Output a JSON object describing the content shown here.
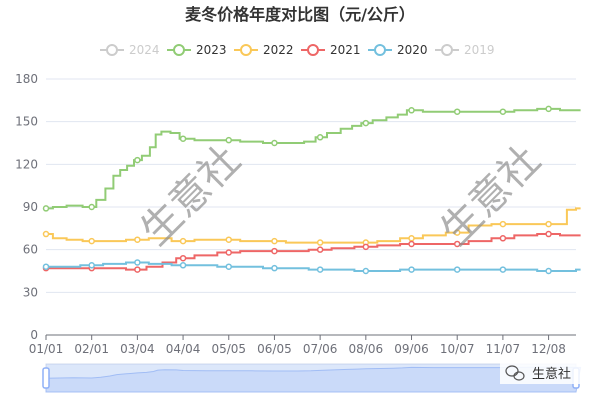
{
  "chart_data": {
    "type": "line",
    "title": "麦冬价格年度对比图（元/公斤）",
    "x": [
      "01/01",
      "02/01",
      "03/04",
      "04/04",
      "05/05",
      "06/05",
      "07/06",
      "08/06",
      "09/06",
      "10/07",
      "11/07",
      "12/08"
    ],
    "ylim": [
      0,
      180
    ],
    "yticks": [
      0,
      30,
      60,
      90,
      120,
      150,
      180
    ],
    "grid": true,
    "legend_position": "top-center",
    "series": [
      {
        "name": "2024",
        "color": "#cccccc",
        "disabled": true,
        "points": []
      },
      {
        "name": "2023",
        "color": "#91cc75",
        "points": [
          {
            "x": 0,
            "y": 89,
            "m": true
          },
          {
            "x": 0.3,
            "y": 90
          },
          {
            "x": 0.6,
            "y": 91
          },
          {
            "x": 1.0,
            "y": 90,
            "m": true
          },
          {
            "x": 1.2,
            "y": 95
          },
          {
            "x": 1.4,
            "y": 103
          },
          {
            "x": 1.55,
            "y": 112
          },
          {
            "x": 1.7,
            "y": 116
          },
          {
            "x": 1.85,
            "y": 119
          },
          {
            "x": 2.0,
            "y": 123,
            "m": true
          },
          {
            "x": 2.2,
            "y": 126
          },
          {
            "x": 2.35,
            "y": 132
          },
          {
            "x": 2.45,
            "y": 141
          },
          {
            "x": 2.6,
            "y": 143
          },
          {
            "x": 2.85,
            "y": 142
          },
          {
            "x": 3.0,
            "y": 138,
            "m": true
          },
          {
            "x": 3.5,
            "y": 137
          },
          {
            "x": 4.0,
            "y": 137,
            "m": true
          },
          {
            "x": 4.5,
            "y": 136
          },
          {
            "x": 5.0,
            "y": 135,
            "m": true
          },
          {
            "x": 5.5,
            "y": 135
          },
          {
            "x": 5.8,
            "y": 136
          },
          {
            "x": 6.0,
            "y": 139,
            "m": true
          },
          {
            "x": 6.3,
            "y": 142
          },
          {
            "x": 6.6,
            "y": 145
          },
          {
            "x": 6.8,
            "y": 147
          },
          {
            "x": 7.0,
            "y": 149,
            "m": true
          },
          {
            "x": 7.3,
            "y": 151
          },
          {
            "x": 7.6,
            "y": 153
          },
          {
            "x": 7.8,
            "y": 155
          },
          {
            "x": 8.0,
            "y": 158,
            "m": true
          },
          {
            "x": 8.5,
            "y": 157
          },
          {
            "x": 9.0,
            "y": 157,
            "m": true
          },
          {
            "x": 9.5,
            "y": 157
          },
          {
            "x": 10.0,
            "y": 157,
            "m": true
          },
          {
            "x": 10.5,
            "y": 158
          },
          {
            "x": 11.0,
            "y": 159,
            "m": true
          },
          {
            "x": 11.5,
            "y": 158
          },
          {
            "x": 11.7,
            "y": 158
          }
        ]
      },
      {
        "name": "2022",
        "color": "#fac858",
        "points": [
          {
            "x": 0,
            "y": 71,
            "m": true
          },
          {
            "x": 0.3,
            "y": 68
          },
          {
            "x": 0.6,
            "y": 67
          },
          {
            "x": 1.0,
            "y": 66,
            "m": true
          },
          {
            "x": 1.5,
            "y": 66
          },
          {
            "x": 2.0,
            "y": 67,
            "m": true
          },
          {
            "x": 2.5,
            "y": 68
          },
          {
            "x": 3.0,
            "y": 66,
            "m": true
          },
          {
            "x": 3.5,
            "y": 67
          },
          {
            "x": 4.0,
            "y": 67,
            "m": true
          },
          {
            "x": 4.5,
            "y": 66
          },
          {
            "x": 5.0,
            "y": 66,
            "m": true
          },
          {
            "x": 5.5,
            "y": 65
          },
          {
            "x": 6.0,
            "y": 65,
            "m": true
          },
          {
            "x": 6.5,
            "y": 65
          },
          {
            "x": 7.0,
            "y": 65,
            "m": true
          },
          {
            "x": 7.5,
            "y": 66
          },
          {
            "x": 8.0,
            "y": 68,
            "m": true
          },
          {
            "x": 8.5,
            "y": 70
          },
          {
            "x": 9.0,
            "y": 72,
            "m": true
          },
          {
            "x": 9.5,
            "y": 77
          },
          {
            "x": 10.0,
            "y": 78,
            "m": true
          },
          {
            "x": 10.5,
            "y": 78
          },
          {
            "x": 11.0,
            "y": 78,
            "m": true
          },
          {
            "x": 11.3,
            "y": 78
          },
          {
            "x": 11.5,
            "y": 88
          },
          {
            "x": 11.7,
            "y": 89
          }
        ]
      },
      {
        "name": "2021",
        "color": "#ee6666",
        "points": [
          {
            "x": 0,
            "y": 47,
            "m": true
          },
          {
            "x": 0.5,
            "y": 47
          },
          {
            "x": 1.0,
            "y": 47,
            "m": true
          },
          {
            "x": 1.5,
            "y": 47
          },
          {
            "x": 2.0,
            "y": 46,
            "m": true
          },
          {
            "x": 2.4,
            "y": 48
          },
          {
            "x": 2.7,
            "y": 51
          },
          {
            "x": 3.0,
            "y": 54,
            "m": true
          },
          {
            "x": 3.5,
            "y": 56
          },
          {
            "x": 4.0,
            "y": 58,
            "m": true
          },
          {
            "x": 4.5,
            "y": 59
          },
          {
            "x": 5.0,
            "y": 59,
            "m": true
          },
          {
            "x": 5.5,
            "y": 59
          },
          {
            "x": 6.0,
            "y": 60,
            "m": true
          },
          {
            "x": 6.5,
            "y": 61
          },
          {
            "x": 7.0,
            "y": 62,
            "m": true
          },
          {
            "x": 7.5,
            "y": 63
          },
          {
            "x": 8.0,
            "y": 64,
            "m": true
          },
          {
            "x": 8.5,
            "y": 64
          },
          {
            "x": 9.0,
            "y": 64,
            "m": true
          },
          {
            "x": 9.5,
            "y": 66
          },
          {
            "x": 10.0,
            "y": 68,
            "m": true
          },
          {
            "x": 10.5,
            "y": 70
          },
          {
            "x": 11.0,
            "y": 71,
            "m": true
          },
          {
            "x": 11.5,
            "y": 70
          },
          {
            "x": 11.7,
            "y": 70
          }
        ]
      },
      {
        "name": "2020",
        "color": "#73c0de",
        "points": [
          {
            "x": 0,
            "y": 48,
            "m": true
          },
          {
            "x": 0.5,
            "y": 48
          },
          {
            "x": 1.0,
            "y": 49,
            "m": true
          },
          {
            "x": 1.5,
            "y": 50
          },
          {
            "x": 2.0,
            "y": 51,
            "m": true
          },
          {
            "x": 2.5,
            "y": 50
          },
          {
            "x": 3.0,
            "y": 49,
            "m": true
          },
          {
            "x": 3.5,
            "y": 49
          },
          {
            "x": 4.0,
            "y": 48,
            "m": true
          },
          {
            "x": 4.5,
            "y": 48
          },
          {
            "x": 5.0,
            "y": 47,
            "m": true
          },
          {
            "x": 5.5,
            "y": 47
          },
          {
            "x": 6.0,
            "y": 46,
            "m": true
          },
          {
            "x": 6.5,
            "y": 46
          },
          {
            "x": 7.0,
            "y": 45,
            "m": true
          },
          {
            "x": 7.5,
            "y": 45
          },
          {
            "x": 8.0,
            "y": 46,
            "m": true
          },
          {
            "x": 8.5,
            "y": 46
          },
          {
            "x": 9.0,
            "y": 46,
            "m": true
          },
          {
            "x": 9.5,
            "y": 46
          },
          {
            "x": 10.0,
            "y": 46,
            "m": true
          },
          {
            "x": 10.5,
            "y": 46
          },
          {
            "x": 11.0,
            "y": 45,
            "m": true
          },
          {
            "x": 11.5,
            "y": 45
          },
          {
            "x": 11.7,
            "y": 46
          }
        ]
      },
      {
        "name": "2019",
        "color": "#cccccc",
        "disabled": true,
        "points": []
      }
    ]
  },
  "watermark": "生意社",
  "brand": {
    "label": "生意社",
    "icon": "wechat-icon"
  },
  "datazoom": {
    "fill_color": "#dbe5fb",
    "handle_color": "#8fb0f7"
  }
}
